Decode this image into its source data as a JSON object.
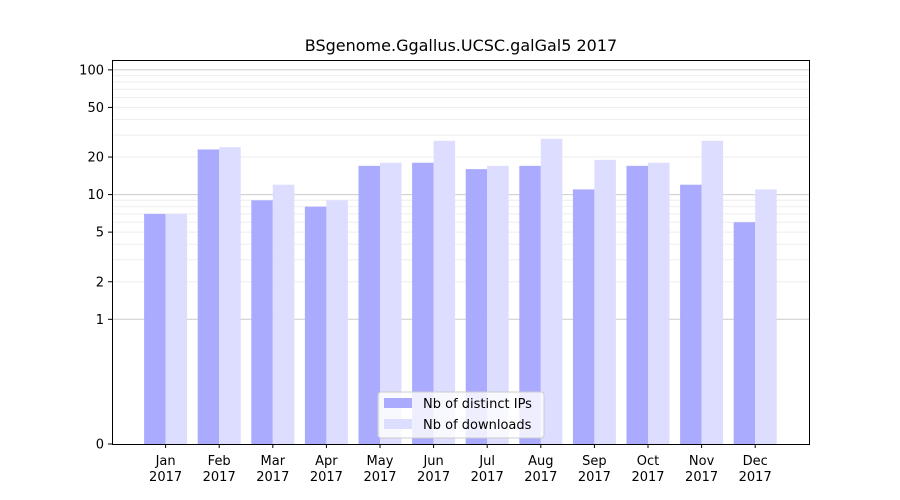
{
  "chart_data": {
    "type": "bar",
    "title": "BSgenome.Ggallus.UCSC.galGal5 2017",
    "xlabel": "",
    "ylabel": "",
    "y_scale": "symlog",
    "ylim": [
      0,
      120
    ],
    "yticks": [
      0,
      1,
      2,
      5,
      10,
      20,
      50,
      100
    ],
    "categories": [
      "Jan\n2017",
      "Feb\n2017",
      "Mar\n2017",
      "Apr\n2017",
      "May\n2017",
      "Jun\n2017",
      "Jul\n2017",
      "Aug\n2017",
      "Sep\n2017",
      "Oct\n2017",
      "Nov\n2017",
      "Dec\n2017"
    ],
    "series": [
      {
        "name": "Nb of distinct IPs",
        "color": "#aaaaff",
        "values": [
          7,
          23,
          9,
          8,
          17,
          18,
          16,
          17,
          11,
          17,
          12,
          6
        ]
      },
      {
        "name": "Nb of downloads",
        "color": "#ddddff",
        "values": [
          7,
          24,
          12,
          9,
          18,
          27,
          17,
          28,
          19,
          18,
          27,
          11
        ]
      }
    ],
    "grid": true,
    "legend_position": "bottom-center"
  }
}
